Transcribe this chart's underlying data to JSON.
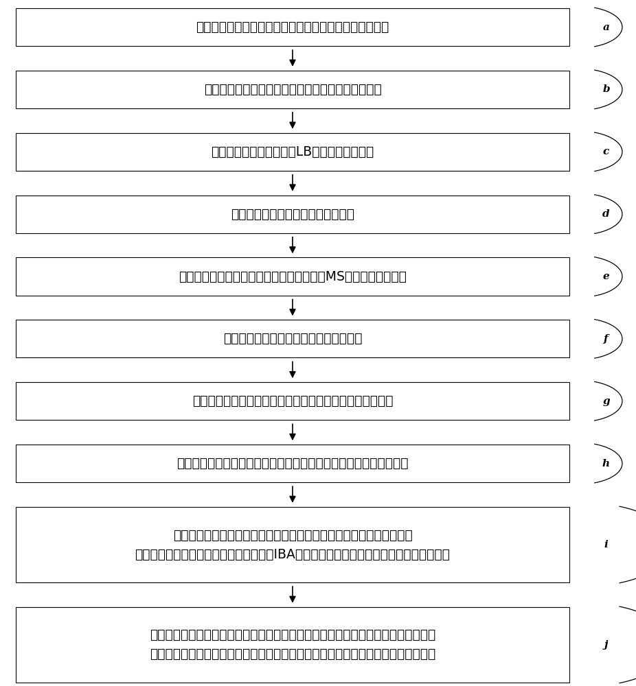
{
  "steps": [
    {
      "label": "a",
      "text": "取丹参组培苗的叶片，将叶片去除叶片边缘后剪切成叶盘",
      "lines": 1
    },
    {
      "label": "b",
      "text": "将叶盘放置于不含潮霉素的第一固体培养基上预培养",
      "lines": 1
    },
    {
      "label": "c",
      "text": "将带质粒的农杆菌接种于LB液体培养基中培养",
      "lines": 1
    },
    {
      "label": "d",
      "text": "从农杆菌菌液中收集菌体以便于侵染",
      "lines": 1
    },
    {
      "label": "e",
      "text": "将预培养过后的丹参叶片放入含有农杆菌的MS培养基中进行侵染",
      "lines": 1
    },
    {
      "label": "f",
      "text": "取出侵染后的叶盘并去除表面残余的菌液",
      "lines": 1
    },
    {
      "label": "g",
      "text": "将去除表面菌液的叶盘置于新的第一固体培养基上黑暗培养",
      "lines": 1
    },
    {
      "label": "h",
      "text": "将共培养过后的叶片转移至含有潮霉素的第二固体培养基上光照培养",
      "lines": 1
    },
    {
      "label": "i",
      "text": "将成功分化出的小芽转移至含有潮霉素的第三固体培养基上继续培养，\n待叶片长得较大时再转移至含有潮霉素和IBA的第四固体培养基上诱导生根和促进植株生长",
      "lines": 2
    },
    {
      "label": "j",
      "text": "将生根后的丹参组培苗转移至中高瓶进行培养，促进植株生长，初期在含有潮霉素的\n第五培养基上继续进行筛选培养，后期继代培养时采用不含抗生素的培养基进行培养",
      "lines": 2
    }
  ],
  "box_bg": "#ffffff",
  "box_edge": "#000000",
  "arrow_color": "#000000",
  "label_color": "#000000",
  "text_color": "#000000",
  "bg_color": "#ffffff",
  "font_size": 13.5,
  "label_font_size": 11
}
